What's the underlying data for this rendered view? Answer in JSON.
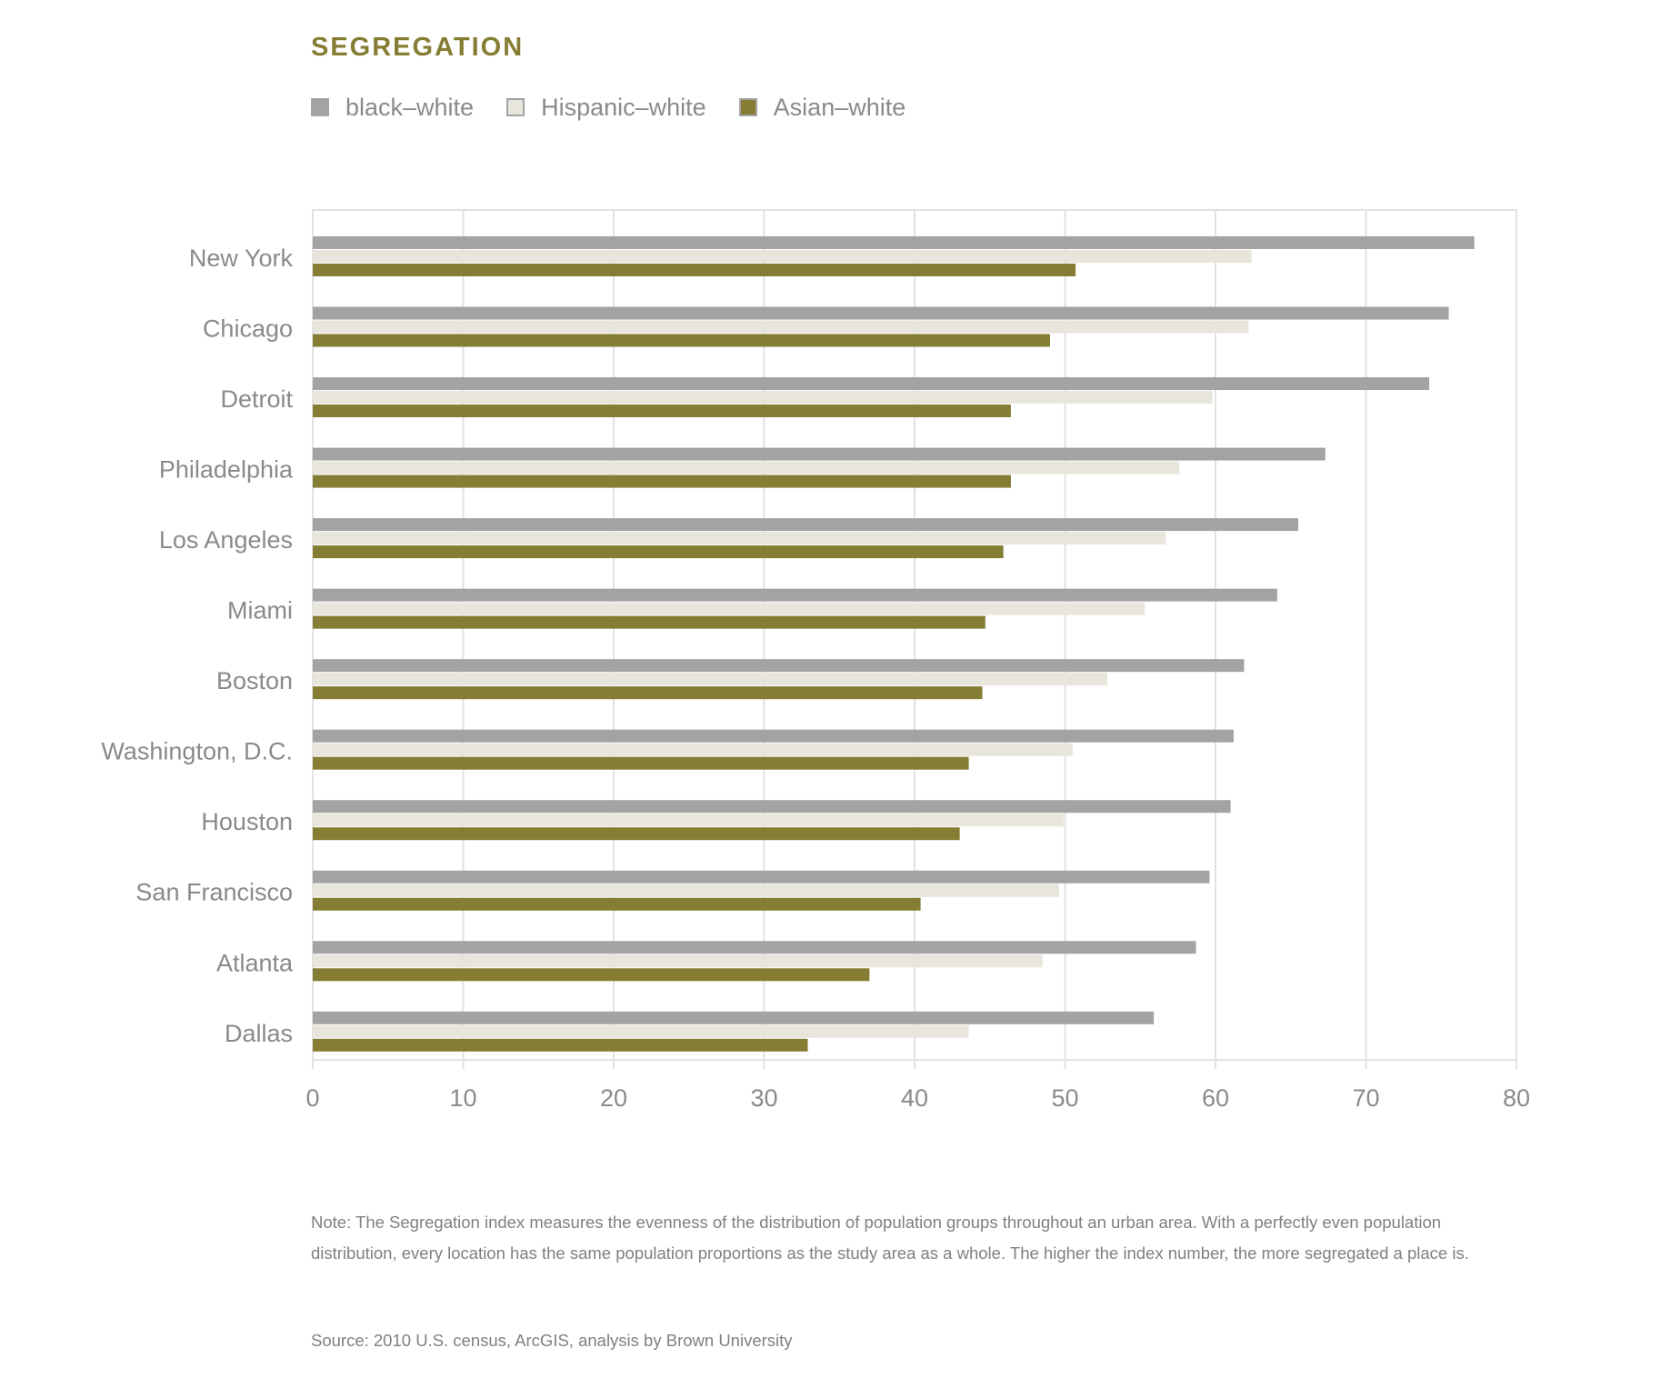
{
  "title": "SEGREGATION",
  "colors": {
    "black_white": "#a3a3a3",
    "hispanic_white": "#e8e5dc",
    "asian_white": "#857d33",
    "grid": "#e2e2e2",
    "text": "#8a8a8a",
    "title": "#857d33"
  },
  "chart_data": {
    "type": "bar",
    "orientation": "horizontal",
    "title": "SEGREGATION",
    "xlabel": "",
    "ylabel": "",
    "xlim": [
      0,
      80
    ],
    "xticks": [
      0,
      10,
      20,
      30,
      40,
      50,
      60,
      70,
      80
    ],
    "grid": true,
    "legend_position": "top-left",
    "categories": [
      "New York",
      "Chicago",
      "Detroit",
      "Philadelphia",
      "Los Angeles",
      "Miami",
      "Boston",
      "Washington, D.C.",
      "Houston",
      "San Francisco",
      "Atlanta",
      "Dallas"
    ],
    "series": [
      {
        "name": "black–white",
        "color": "#a3a3a3",
        "values": [
          77.2,
          75.5,
          74.2,
          67.3,
          65.5,
          64.1,
          61.9,
          61.2,
          61.0,
          59.6,
          58.7,
          55.9
        ]
      },
      {
        "name": "Hispanic–white",
        "color": "#e8e5dc",
        "values": [
          62.4,
          62.2,
          59.8,
          57.6,
          56.7,
          55.3,
          52.8,
          50.5,
          49.9,
          49.6,
          48.5,
          43.6
        ]
      },
      {
        "name": "Asian–white",
        "color": "#857d33",
        "values": [
          50.7,
          49.0,
          46.4,
          46.4,
          45.9,
          44.7,
          44.5,
          43.6,
          43.0,
          40.4,
          37.0,
          32.9
        ]
      }
    ]
  },
  "note": "Note: The Segregation index measures the evenness of the distribution of population groups throughout an urban area. With a perfectly even population distribution, every location has the same population proportions as the study area as a whole. The higher the index number, the more segregated a place is.",
  "source": "Source: 2010 U.S. census, ArcGIS, analysis by Brown University"
}
